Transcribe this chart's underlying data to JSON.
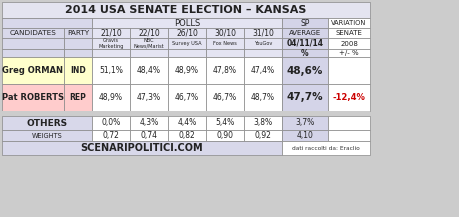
{
  "title": "2014 USA SENATE ELECTION – KANSAS",
  "col_dates": [
    "21/10",
    "22/10",
    "26/10",
    "30/10",
    "31/10"
  ],
  "col_sources": [
    "Gravis\nMarketing",
    "NBC\nNews/Marist",
    "Survey USA",
    "Fox News",
    "YouGov"
  ],
  "orman_data": [
    "51,1%",
    "48,4%",
    "48,9%",
    "47,8%",
    "47,4%"
  ],
  "roberts_data": [
    "48,9%",
    "47,3%",
    "46,7%",
    "46,7%",
    "48,7%"
  ],
  "orman_avg": "48,6%",
  "roberts_avg": "47,7%",
  "roberts_variation": "-12,4%",
  "others_data": [
    "0,0%",
    "4,3%",
    "4,4%",
    "5,4%",
    "3,8%"
  ],
  "others_avg": "3,7%",
  "weights_data": [
    "0,72",
    "0,74",
    "0,82",
    "0,90",
    "0,92"
  ],
  "weights_avg": "4,10",
  "footer_left": "SCENARIPOLITICI.COM",
  "footer_right": "dati raccolti da: Eraclio",
  "bg_title": "#e4e4f0",
  "bg_header": "#d8d8ea",
  "bg_polls_header": "#e4e4f2",
  "bg_orman": "#ffffcc",
  "bg_roberts": "#ffcccc",
  "bg_sp_avg": "#d4d4e8",
  "bg_others_row": "#d8d8ea",
  "bg_white": "#ffffff",
  "bg_footer": "#d8d8ea",
  "bg_fig": "#cccccc",
  "color_red": "#cc0000",
  "color_text": "#222222"
}
